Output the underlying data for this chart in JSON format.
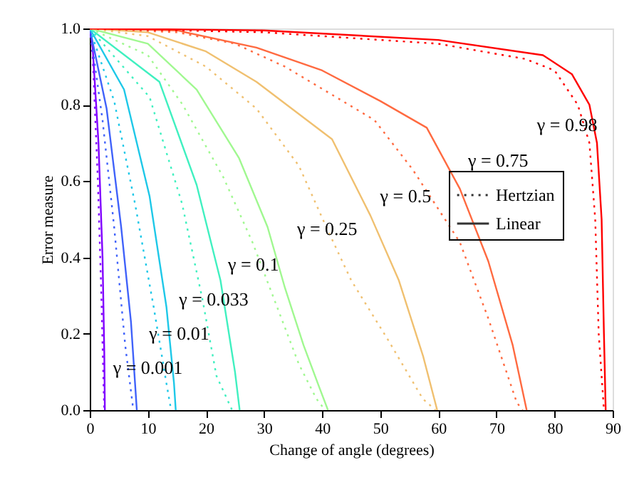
{
  "chart_data": {
    "type": "line",
    "xlabel": "Change of angle (degrees)",
    "ylabel": "Error measure",
    "xlim": [
      0,
      90
    ],
    "xticks": [
      0,
      10,
      20,
      30,
      40,
      50,
      60,
      70,
      80,
      90
    ],
    "ylim": [
      0,
      1
    ],
    "yticks": [
      {
        "value": 0,
        "label": "0.0"
      },
      {
        "value": 0.2,
        "label": "0.2"
      },
      {
        "value": 0.4,
        "label": "0.4"
      },
      {
        "value": 0.6,
        "label": "0.6"
      },
      {
        "value": 0.8,
        "label": "0.8"
      },
      {
        "value": 1,
        "label": "1.0"
      }
    ],
    "legend": "right",
    "marker": "none",
    "series": [
      {
        "name": "Hertzian",
        "color": "#8000ff",
        "line_style": "dotted",
        "x": [
          0,
          0.5,
          1.4,
          2.0,
          2.4,
          2.5
        ],
        "values": [
          1,
          0.93,
          0.6,
          0.3,
          0.05,
          0
        ]
      },
      {
        "name": "Linear",
        "color": "#8000ff",
        "line_style": "solid",
        "x": [
          0,
          0.5,
          1.5,
          2.2,
          2.5,
          2.6
        ],
        "values": [
          1,
          0.95,
          0.7,
          0.4,
          0.15,
          0
        ]
      },
      {
        "color": "#4062fa",
        "line_style": "dotted",
        "x": [
          0,
          2.2,
          4.2,
          6.1,
          7.5
        ],
        "values": [
          1,
          0.76,
          0.48,
          0.17,
          0
        ]
      },
      {
        "color": "#4062fa",
        "line_style": "solid",
        "x": [
          0,
          2.9,
          5.4,
          7.1,
          8.1
        ],
        "values": [
          1,
          0.79,
          0.48,
          0.23,
          0
        ]
      },
      {
        "color": "#1ec8e8",
        "line_style": "dotted",
        "x": [
          0,
          4.2,
          7.8,
          11,
          13.2,
          14
        ],
        "values": [
          1,
          0.81,
          0.54,
          0.27,
          0.07,
          0
        ]
      },
      {
        "color": "#1ec8e8",
        "line_style": "solid",
        "x": [
          0,
          5.9,
          10.3,
          13.2,
          14.5,
          14.8
        ],
        "values": [
          1,
          0.84,
          0.56,
          0.27,
          0.07,
          0
        ]
      },
      {
        "color": "#40f0c0",
        "line_style": "dotted",
        "x": [
          0,
          10.3,
          15.9,
          19.4,
          21.8,
          24.5
        ],
        "values": [
          1,
          0.82,
          0.54,
          0.29,
          0.09,
          0
        ]
      },
      {
        "color": "#40f0c0",
        "line_style": "solid",
        "x": [
          0,
          12,
          18.4,
          22.5,
          25,
          25.8
        ],
        "values": [
          1,
          0.86,
          0.59,
          0.34,
          0.1,
          0
        ]
      },
      {
        "color": "#a0f890",
        "line_style": "dotted",
        "x": [
          0,
          10,
          16,
          23,
          28,
          32,
          36,
          39,
          40.5
        ],
        "values": [
          1,
          0.93,
          0.8,
          0.61,
          0.44,
          0.28,
          0.12,
          0.03,
          0
        ]
      },
      {
        "color": "#a0f890",
        "line_style": "solid",
        "x": [
          0,
          10,
          18.4,
          25.7,
          30.6,
          33.6,
          36.8,
          39.5,
          41
        ],
        "values": [
          1,
          0.96,
          0.84,
          0.66,
          0.48,
          0.32,
          0.17,
          0.06,
          0
        ]
      },
      {
        "color": "#f0c070",
        "line_style": "dotted",
        "x": [
          0,
          10,
          20,
          28.7,
          36,
          41,
          45,
          51.5,
          57.3,
          59.5
        ],
        "values": [
          1,
          0.98,
          0.9,
          0.79,
          0.64,
          0.47,
          0.34,
          0.18,
          0.03,
          0
        ]
      },
      {
        "color": "#f0c070",
        "line_style": "solid",
        "x": [
          0,
          10,
          20,
          28.7,
          41.7,
          48.3,
          53.2,
          57.4,
          59.8
        ],
        "values": [
          1,
          0.99,
          0.94,
          0.86,
          0.71,
          0.51,
          0.34,
          0.14,
          0
        ]
      },
      {
        "color": "#ff6a40",
        "line_style": "dotted",
        "x": [
          0,
          15,
          25,
          33.6,
          49,
          55.6,
          63.7,
          68.6,
          73.5,
          74.5
        ],
        "values": [
          1,
          0.99,
          0.96,
          0.9,
          0.76,
          0.63,
          0.44,
          0.24,
          0.02,
          0
        ]
      },
      {
        "color": "#ff6a40",
        "line_style": "solid",
        "x": [
          0,
          15,
          28.7,
          40,
          50,
          58,
          63.7,
          68.6,
          72.8,
          75.2
        ],
        "values": [
          1,
          0.995,
          0.95,
          0.89,
          0.81,
          0.74,
          0.58,
          0.39,
          0.17,
          0
        ]
      },
      {
        "color": "#ff0000",
        "line_style": "dotted",
        "x": [
          0,
          30,
          60,
          75,
          80,
          84,
          86,
          87,
          87.6,
          88.5
        ],
        "values": [
          1,
          0.99,
          0.96,
          0.92,
          0.89,
          0.8,
          0.7,
          0.5,
          0.2,
          0
        ]
      },
      {
        "color": "#ff0000",
        "line_style": "solid",
        "x": [
          0,
          30,
          60,
          78,
          83,
          86,
          87.3,
          88.1,
          88.5,
          88.8
        ],
        "values": [
          1,
          0.995,
          0.97,
          0.93,
          0.88,
          0.8,
          0.7,
          0.5,
          0.2,
          0
        ]
      }
    ],
    "annotations": [
      "γ = 0.98",
      "γ = 0.75",
      "γ = 0.5",
      "γ = 0.25",
      "γ = 0.1",
      "γ = 0.033",
      "γ = 0.01",
      "γ = 0.001"
    ]
  }
}
